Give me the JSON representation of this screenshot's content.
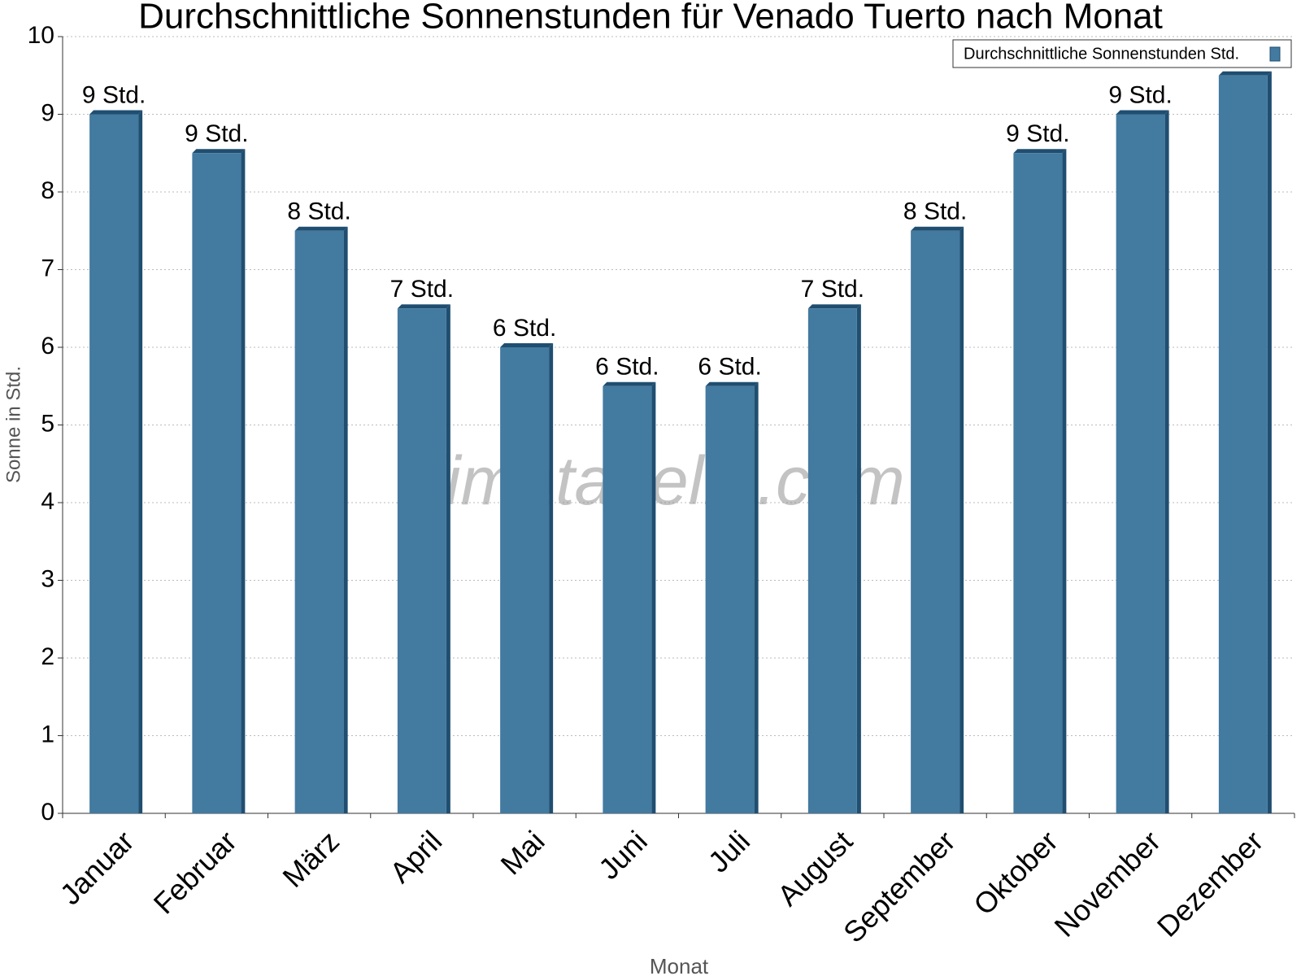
{
  "chart_data": {
    "type": "bar",
    "title": "Durchschnittliche Sonnenstunden für Venado Tuerto nach Monat",
    "x_label": "Monat",
    "y_label": "Sonne in Std.",
    "watermark": "klimatabelle.com",
    "categories": [
      "Januar",
      "Februar",
      "März",
      "April",
      "Mai",
      "Juni",
      "Juli",
      "August",
      "September",
      "Oktober",
      "November",
      "Dezember"
    ],
    "series": [
      {
        "name": "Durchschnittliche Sonnenstunden Std.",
        "color": "#437aa0",
        "values": [
          9,
          8.5,
          7.5,
          6.5,
          6,
          5.5,
          5.5,
          6.5,
          7.5,
          8.5,
          9,
          9.5
        ],
        "value_labels": [
          "9 Std.",
          "9 Std.",
          "8 Std.",
          "7 Std.",
          "6 Std.",
          "6 Std.",
          "6 Std.",
          "7 Std.",
          "8 Std.",
          "9 Std.",
          "9 Std.",
          null
        ]
      }
    ],
    "ylim": [
      0,
      10
    ],
    "yticks": [
      0,
      1,
      2,
      3,
      4,
      5,
      6,
      7,
      8,
      9,
      10
    ],
    "grid": true,
    "legend": "top-right"
  }
}
